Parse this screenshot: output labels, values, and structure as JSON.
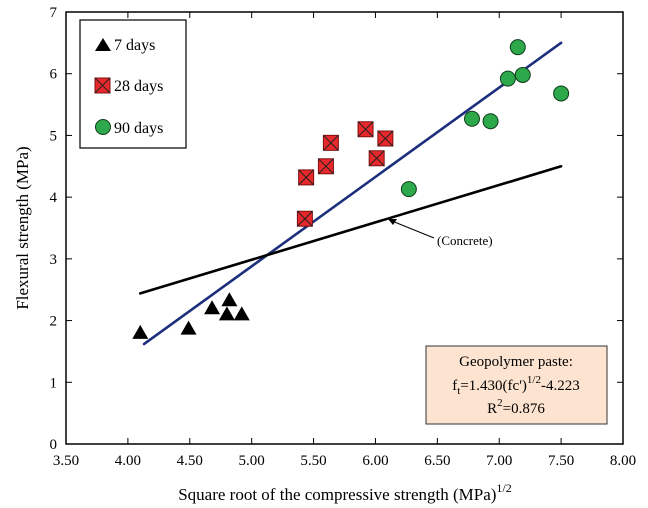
{
  "chart_data": {
    "type": "scatter",
    "xlabel": "Square root of the compressive strength (MPa)",
    "xlabel_sup": "1/2",
    "ylabel": "Flexural strength (MPa)",
    "xlim": [
      3.5,
      8.0
    ],
    "ylim": [
      0,
      7
    ],
    "xticks": [
      "3.50",
      "4.00",
      "4.50",
      "5.00",
      "5.50",
      "6.00",
      "6.50",
      "7.00",
      "7.50",
      "8.00"
    ],
    "yticks": [
      "0",
      "1",
      "2",
      "3",
      "4",
      "5",
      "6",
      "7"
    ],
    "grid": false,
    "legend_position": "top-left",
    "series": [
      {
        "name": "7 days",
        "marker": "triangle",
        "color": "#000000",
        "points": [
          [
            4.1,
            1.8
          ],
          [
            4.49,
            1.87
          ],
          [
            4.68,
            2.2
          ],
          [
            4.8,
            2.1
          ],
          [
            4.82,
            2.33
          ],
          [
            4.92,
            2.1
          ]
        ]
      },
      {
        "name": "28 days",
        "marker": "square-x",
        "color": "#e8282b",
        "points": [
          [
            5.43,
            3.65
          ],
          [
            5.44,
            4.32
          ],
          [
            5.6,
            4.5
          ],
          [
            5.64,
            4.88
          ],
          [
            5.92,
            5.1
          ],
          [
            6.01,
            4.63
          ],
          [
            6.08,
            4.95
          ]
        ]
      },
      {
        "name": "90 days",
        "marker": "circle",
        "color": "#2da84a",
        "points": [
          [
            6.27,
            4.13
          ],
          [
            6.78,
            5.27
          ],
          [
            6.93,
            5.23
          ],
          [
            7.07,
            5.92
          ],
          [
            7.15,
            6.43
          ],
          [
            7.19,
            5.98
          ],
          [
            7.5,
            5.68
          ]
        ]
      }
    ],
    "lines": [
      {
        "name": "Geopolymer paste fit",
        "color": "#1c2f7c",
        "points": [
          [
            4.13,
            1.62
          ],
          [
            7.5,
            6.5
          ]
        ]
      },
      {
        "name": "Concrete",
        "color": "#000000",
        "points": [
          [
            4.1,
            2.44
          ],
          [
            7.5,
            4.5
          ]
        ]
      }
    ],
    "annotation": {
      "text": "(Concrete)",
      "x": 6.5,
      "y": 3.3,
      "arrow_to": [
        6.12,
        3.65
      ]
    },
    "equation_box": {
      "line1": "Geopolymer paste:",
      "line2_f": "f",
      "line2_sub": "t",
      "line2_mid": "=1.430(fc')",
      "line2_sup": "1/2",
      "line2_end": "-4.223",
      "line3_r": "R",
      "line3_sup": "2",
      "line3_end": "=0.876",
      "fill": "#fde4d0"
    }
  }
}
